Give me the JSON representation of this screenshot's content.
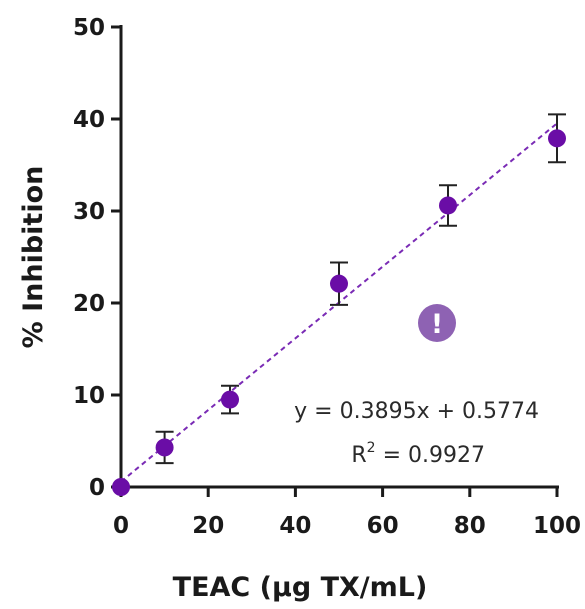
{
  "chart_data": {
    "type": "scatter",
    "xlabel": "TEAC (µg TX/mL)",
    "ylabel": "% Inhibition",
    "xlim": [
      0,
      100
    ],
    "ylim": [
      0,
      50
    ],
    "x_ticks": [
      0,
      20,
      40,
      60,
      80,
      100
    ],
    "y_ticks": [
      0,
      10,
      20,
      30,
      40,
      50
    ],
    "grid": false,
    "series": [
      {
        "x": [
          0,
          10,
          25,
          50,
          75,
          100
        ],
        "y": [
          0,
          4.3,
          9.5,
          22.1,
          30.6,
          37.9
        ],
        "error": [
          0,
          1.7,
          1.5,
          2.3,
          2.2,
          2.6
        ],
        "color": "#6a0da6"
      }
    ],
    "trendline": {
      "slope": 0.3895,
      "intercept": 0.5774,
      "style": "dashed",
      "color": "#7a2bb5"
    },
    "equation_text": "y = 0.3895x + 0.5774",
    "r2_prefix": "R",
    "r2_sup": "2",
    "r2_value": " = 0.9927",
    "alert_badge": {
      "icon": "exclamation-icon",
      "glyph": "!",
      "color": "#8e62b3"
    }
  }
}
